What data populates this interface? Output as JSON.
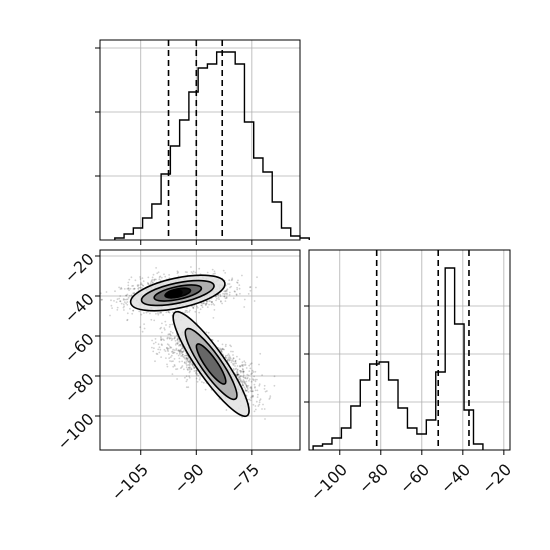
{
  "chart_data": {
    "type": "corner",
    "grid": true,
    "panels": [
      {
        "id": "hist_x",
        "type": "histogram",
        "xlim": [
          -116,
          -62
        ],
        "ylim": [
          0,
          1.0
        ],
        "bins_from": -112,
        "bin_width": 2.5,
        "counts": [
          0.01,
          0.03,
          0.06,
          0.11,
          0.18,
          0.33,
          0.47,
          0.6,
          0.74,
          0.86,
          0.88,
          0.94,
          0.94,
          0.88,
          0.59,
          0.41,
          0.34,
          0.19,
          0.06,
          0.02,
          0.01
        ],
        "quantile_lines": [
          -97.5,
          -90.0,
          -83.0
        ],
        "yticks": [
          0.32,
          0.64,
          0.96
        ]
      },
      {
        "id": "hist_y",
        "type": "histogram",
        "xlim": [
          -115,
          -17
        ],
        "ylim": [
          0,
          1.0
        ],
        "bins_from": -113,
        "bin_width": 4.6,
        "counts": [
          0.02,
          0.03,
          0.06,
          0.11,
          0.22,
          0.35,
          0.43,
          0.44,
          0.35,
          0.21,
          0.11,
          0.08,
          0.15,
          0.39,
          0.91,
          0.63,
          0.2,
          0.03
        ],
        "quantile_lines": [
          -82.0,
          -52.0,
          -37.0
        ],
        "yticks": [
          0.24,
          0.48,
          0.72
        ],
        "xticks": [
          -100,
          -80,
          -60,
          -40,
          -20
        ],
        "xtick_labels": [
          "−100",
          "−80",
          "−60",
          "−40",
          "−20"
        ]
      },
      {
        "id": "joint",
        "type": "density_contour",
        "xlim": [
          -116,
          -62
        ],
        "ylim": [
          -117,
          -17
        ],
        "xticks": [
          -105,
          -90,
          -75
        ],
        "xtick_labels": [
          "−105",
          "−90",
          "−75"
        ],
        "yticks": [
          -20,
          -40,
          -60,
          -80,
          -100
        ],
        "ytick_labels": [
          "−20",
          "−40",
          "−60",
          "−80",
          "−100"
        ],
        "clusters": [
          {
            "center": [
              -95,
              -38.5
            ],
            "angle_deg": 12,
            "levels": [
              [
                13.0,
                7.5
              ],
              [
                10.0,
                5.0
              ],
              [
                6.5,
                3.2
              ],
              [
                3.5,
                2.0
              ]
            ]
          },
          {
            "center": [
              -86,
              -74
            ],
            "angle_deg": -55,
            "levels": [
              [
                17.0,
                7.0
              ],
              [
                11.5,
                5.0
              ],
              [
                6.5,
                3.0
              ]
            ]
          }
        ]
      }
    ]
  }
}
